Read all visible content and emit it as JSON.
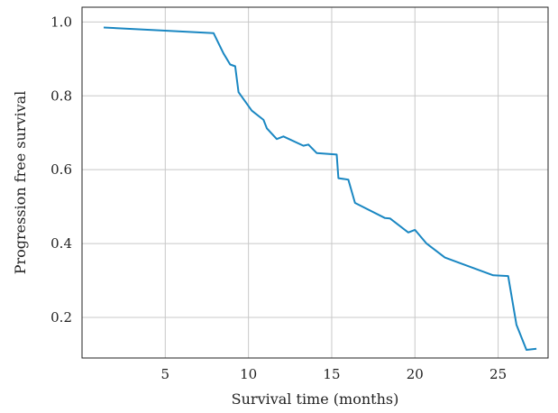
{
  "chart_data": {
    "type": "line",
    "xlabel": "Survival time (months)",
    "ylabel": "Progression free survival",
    "xlim": [
      0,
      28
    ],
    "ylim": [
      0.09,
      1.04
    ],
    "xticks": [
      5,
      10,
      15,
      20,
      25
    ],
    "xtick_labels": [
      "5",
      "10",
      "15",
      "20",
      "25"
    ],
    "yticks": [
      0.2,
      0.4,
      0.6,
      0.8,
      1.0
    ],
    "ytick_labels": [
      "0.2",
      "0.4",
      "0.6",
      "0.8",
      "1.0"
    ],
    "grid": true,
    "series": [
      {
        "color": "#1a87c2",
        "x": [
          1.3,
          7.9,
          8.5,
          8.9,
          9.2,
          9.4,
          10.2,
          10.9,
          11.1,
          11.7,
          12.1,
          13.3,
          13.6,
          14.1,
          15.3,
          15.4,
          16.0,
          16.4,
          18.2,
          18.5,
          19.6,
          20.0,
          20.7,
          21.8,
          24.7,
          25.6,
          26.1,
          26.7,
          27.3
        ],
        "y": [
          0.985,
          0.97,
          0.915,
          0.885,
          0.88,
          0.81,
          0.76,
          0.735,
          0.712,
          0.683,
          0.69,
          0.665,
          0.668,
          0.645,
          0.641,
          0.577,
          0.573,
          0.51,
          0.469,
          0.468,
          0.43,
          0.437,
          0.4,
          0.362,
          0.314,
          0.312,
          0.18,
          0.112,
          0.115
        ]
      }
    ]
  }
}
